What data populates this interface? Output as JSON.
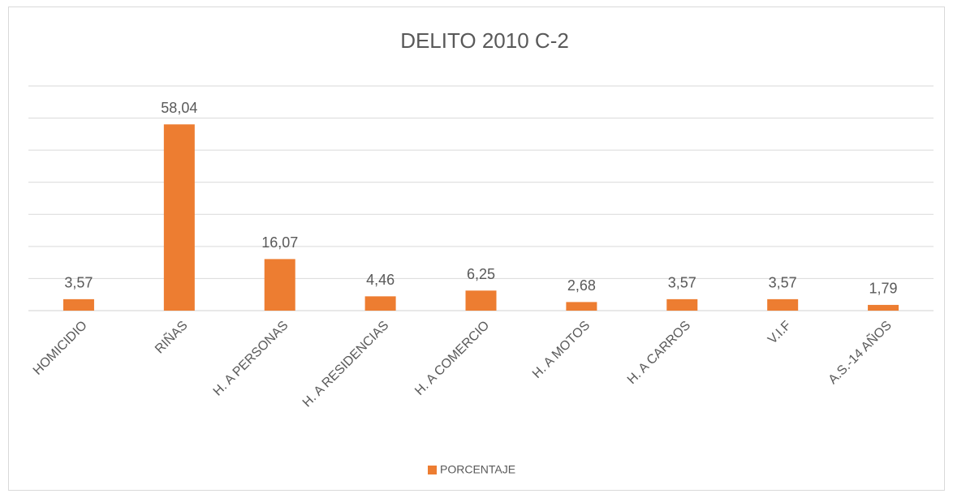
{
  "chart_data": {
    "type": "bar",
    "title": "DELITO 2010 C-2",
    "categories": [
      "HOMICIDIO",
      "RIÑAS",
      "H. A PERSONAS",
      "H. A RESIDENCIAS",
      "H. A COMERCIO",
      "H. A MOTOS",
      "H. A CARROS",
      "V.I.F",
      "A.S.-14 AÑOS"
    ],
    "series": [
      {
        "name": "PORCENTAJE",
        "color": "#ed7d31",
        "values": [
          3.57,
          58.04,
          16.07,
          4.46,
          6.25,
          2.68,
          3.57,
          3.57,
          1.79
        ],
        "value_labels": [
          "3,57",
          "58,04",
          "16,07",
          "4,46",
          "6,25",
          "2,68",
          "3,57",
          "3,57",
          "1,79"
        ]
      }
    ],
    "ylim": [
      0,
      70
    ],
    "yticks": [
      0,
      10,
      20,
      30,
      40,
      50,
      60,
      70
    ],
    "grid": true,
    "legend": "bottom"
  }
}
